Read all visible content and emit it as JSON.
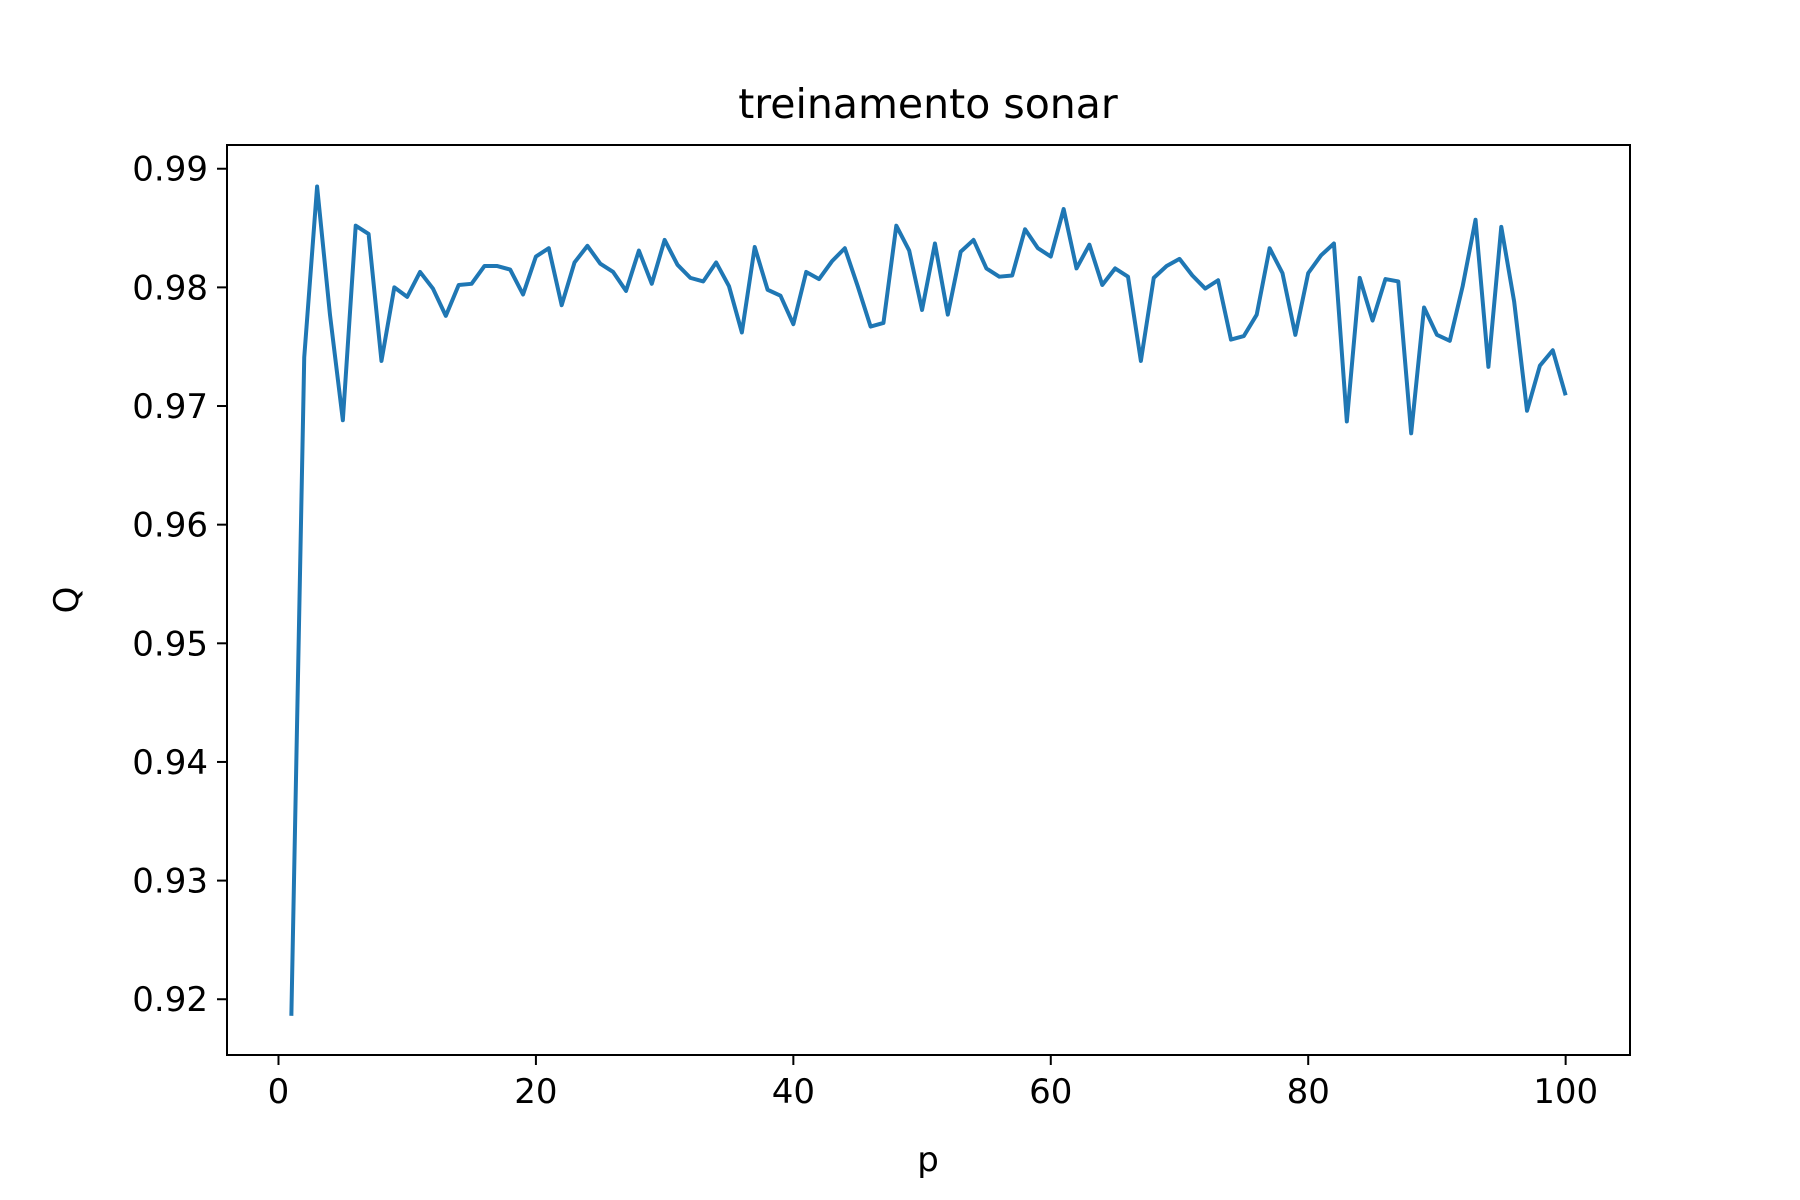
{
  "chart_data": {
    "type": "line",
    "title": "treinamento sonar",
    "xlabel": "p",
    "ylabel": "Q",
    "xlim": [
      -4,
      105
    ],
    "ylim": [
      0.9153,
      0.992
    ],
    "xticks": [
      0,
      20,
      40,
      60,
      80,
      100
    ],
    "yticks": [
      0.92,
      0.93,
      0.94,
      0.95,
      0.96,
      0.97,
      0.98,
      0.99
    ],
    "ytick_labels": [
      "0.92",
      "0.93",
      "0.94",
      "0.95",
      "0.96",
      "0.97",
      "0.98",
      "0.99"
    ],
    "grid": false,
    "color": "#1f77b4",
    "series": [
      {
        "x": [
          1,
          2,
          3,
          4,
          5,
          6,
          7,
          8,
          9,
          10,
          11,
          12,
          13,
          14,
          15,
          16,
          17,
          18,
          19,
          20,
          21,
          22,
          23,
          24,
          25,
          26,
          27,
          28,
          29,
          30,
          31,
          32,
          33,
          34,
          35,
          36,
          37,
          38,
          39,
          40,
          41,
          42,
          43,
          44,
          45,
          46,
          47,
          48,
          49,
          50,
          51,
          52,
          53,
          54,
          55,
          56,
          57,
          58,
          59,
          60,
          61,
          62,
          63,
          64,
          65,
          66,
          67,
          68,
          69,
          70,
          71,
          72,
          73,
          74,
          75,
          76,
          77,
          78,
          79,
          80,
          81,
          82,
          83,
          84,
          85,
          86,
          87,
          88,
          89,
          90,
          91,
          92,
          93,
          94,
          95,
          96,
          97,
          98,
          99,
          100
        ],
        "values": [
          0.9186,
          0.9741,
          0.9885,
          0.9777,
          0.9688,
          0.9852,
          0.9845,
          0.9738,
          0.98,
          0.9792,
          0.9813,
          0.9799,
          0.9776,
          0.9802,
          0.9803,
          0.9818,
          0.9818,
          0.9815,
          0.9794,
          0.9826,
          0.9833,
          0.9785,
          0.9821,
          0.9835,
          0.982,
          0.9813,
          0.9797,
          0.9831,
          0.9803,
          0.984,
          0.9819,
          0.9808,
          0.9805,
          0.9821,
          0.9801,
          0.9762,
          0.9834,
          0.9798,
          0.9793,
          0.9769,
          0.9813,
          0.9807,
          0.9822,
          0.9833,
          0.9801,
          0.9767,
          0.977,
          0.9852,
          0.9831,
          0.9781,
          0.9837,
          0.9777,
          0.983,
          0.984,
          0.9816,
          0.9809,
          0.981,
          0.9849,
          0.9833,
          0.9826,
          0.9866,
          0.9816,
          0.9836,
          0.9802,
          0.9816,
          0.9809,
          0.9738,
          0.9808,
          0.9818,
          0.9824,
          0.981,
          0.9799,
          0.9806,
          0.9756,
          0.9759,
          0.9777,
          0.9833,
          0.9812,
          0.976,
          0.9812,
          0.9827,
          0.9837,
          0.9687,
          0.9808,
          0.9772,
          0.9807,
          0.9805,
          0.9677,
          0.9783,
          0.976,
          0.9755,
          0.9801,
          0.9857,
          0.9733,
          0.9851,
          0.9788,
          0.9696,
          0.9734,
          0.9747,
          0.9709
        ]
      }
    ]
  }
}
